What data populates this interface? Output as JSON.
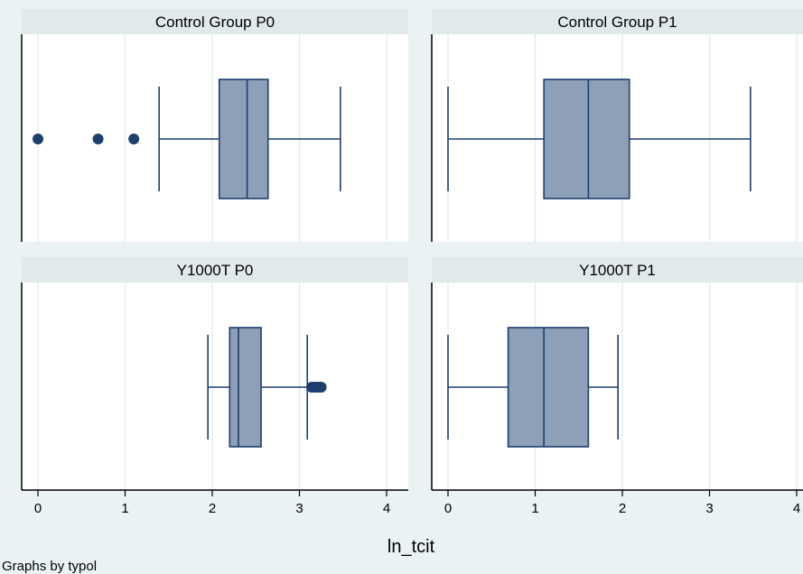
{
  "chart_data": {
    "type": "box",
    "xlabel": "ln_tcit",
    "note": "Graphs by typol",
    "xlim": [
      -0.2,
      4.1
    ],
    "xticks": [
      0,
      1,
      2,
      3,
      4
    ],
    "grid": true,
    "colors": {
      "background": "#eaf2f3",
      "panel": "#ffffff",
      "header": "#e1e9ea",
      "box_fill": "#8da0b8",
      "box_stroke": "#1c3f6e",
      "outlier": "#1c3f6e",
      "grid": "#dfe9ee",
      "axis": "#000000"
    },
    "panels": [
      {
        "title": "Control Group P0",
        "whisker_low": 1.39,
        "q1": 2.08,
        "median": 2.4,
        "q3": 2.64,
        "whisker_high": 3.47,
        "outliers": [
          0,
          0.69,
          1.1
        ]
      },
      {
        "title": "Control Group P1",
        "whisker_low": 0,
        "q1": 1.1,
        "median": 1.61,
        "q3": 2.08,
        "whisker_high": 3.47,
        "outliers": []
      },
      {
        "title": "Y1000T P0",
        "whisker_low": 1.95,
        "q1": 2.2,
        "median": 2.3,
        "q3": 2.56,
        "whisker_high": 3.09,
        "outliers": [
          3.14,
          3.17,
          3.2,
          3.22,
          3.25
        ]
      },
      {
        "title": "Y1000T P1",
        "whisker_low": 0,
        "q1": 0.69,
        "median": 1.1,
        "q3": 1.61,
        "whisker_high": 1.95,
        "outliers": []
      }
    ]
  }
}
